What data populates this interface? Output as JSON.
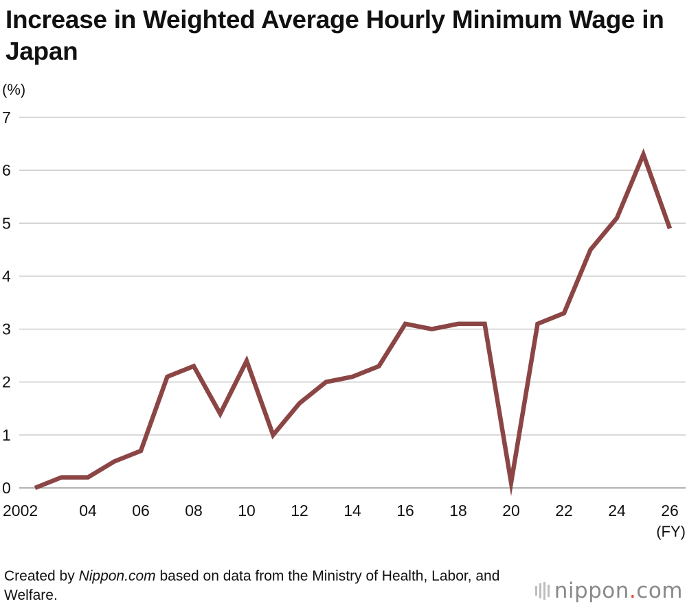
{
  "title": "Increase in Weighted Average Hourly Minimum Wage in Japan",
  "unit_label": "(%)",
  "x_unit_label": "(FY)",
  "source": {
    "prefix": "Created by ",
    "site": "Nippon.com",
    "suffix": " based on data from the Ministry of Health, Labor, and Welfare."
  },
  "brand": {
    "name_left": "nippon",
    "dot": ".",
    "name_right": "com"
  },
  "colors": {
    "line": "#8b4545",
    "grid": "#cccccc",
    "brand_dot": "#e0463a"
  },
  "chart_data": {
    "type": "line",
    "title": "Increase in Weighted Average Hourly Minimum Wage in Japan",
    "ylabel": "(%)",
    "xlabel": "(FY)",
    "ylim": [
      0,
      7
    ],
    "yticks": [
      "0",
      "1",
      "2",
      "3",
      "4",
      "5",
      "6",
      "7"
    ],
    "xticks": [
      {
        "x": 2002,
        "label": "2002"
      },
      {
        "x": 2004,
        "label": "04"
      },
      {
        "x": 2006,
        "label": "06"
      },
      {
        "x": 2008,
        "label": "08"
      },
      {
        "x": 2010,
        "label": "10"
      },
      {
        "x": 2012,
        "label": "12"
      },
      {
        "x": 2014,
        "label": "14"
      },
      {
        "x": 2016,
        "label": "16"
      },
      {
        "x": 2018,
        "label": "18"
      },
      {
        "x": 2020,
        "label": "20"
      },
      {
        "x": 2022,
        "label": "22"
      },
      {
        "x": 2024,
        "label": "24"
      },
      {
        "x": 2026,
        "label": "26"
      }
    ],
    "grid": true,
    "x": [
      2002,
      2003,
      2004,
      2005,
      2006,
      2007,
      2008,
      2009,
      2010,
      2011,
      2012,
      2013,
      2014,
      2015,
      2016,
      2017,
      2018,
      2019,
      2020,
      2021,
      2022,
      2023,
      2024,
      2025,
      2026
    ],
    "values": [
      0.0,
      0.2,
      0.2,
      0.5,
      0.7,
      2.1,
      2.3,
      1.4,
      2.4,
      1.0,
      1.6,
      2.0,
      2.1,
      2.3,
      3.1,
      3.0,
      3.1,
      3.1,
      0.1,
      3.1,
      3.3,
      4.5,
      5.1,
      6.3,
      4.9
    ]
  }
}
